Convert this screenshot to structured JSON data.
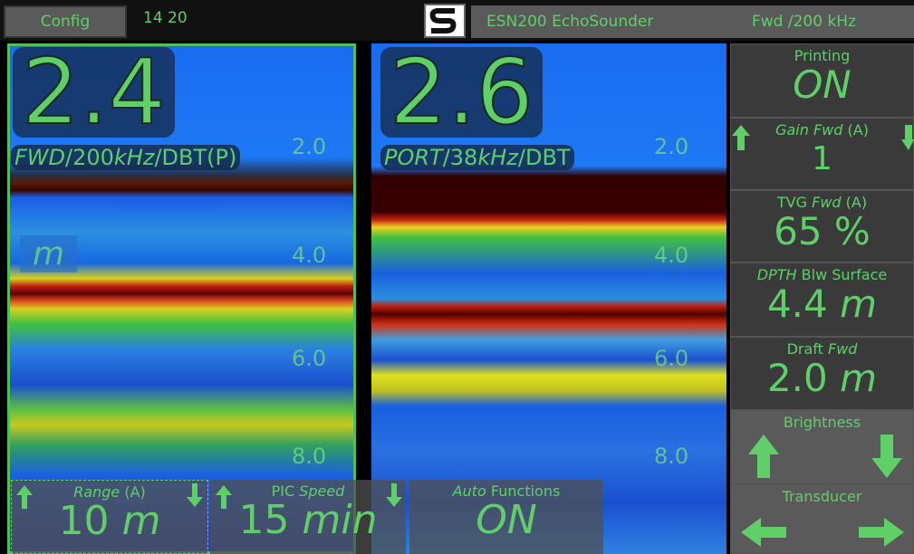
{
  "top_bar": {
    "config": "Config",
    "time": "14 20",
    "title": "ESN200 EchoSounder",
    "mode": "Fwd /200 kHz"
  },
  "left_echogram": {
    "depth": "2.4",
    "label": [
      "FWD",
      "/200",
      "kHz",
      "/DBT(P)"
    ],
    "unit": "m",
    "scale": [
      "2.0",
      "4.0",
      "6.0",
      "8.0"
    ]
  },
  "right_echogram": {
    "depth": "2.6",
    "label": [
      "PORT",
      "/38",
      "kHz",
      "/DBT"
    ],
    "scale": [
      "2.0",
      "4.0",
      "6.0",
      "8.0"
    ]
  },
  "side_panel": {
    "printing": {
      "title": "Printing",
      "value": "ON"
    },
    "gain": {
      "title": [
        "Gain",
        "Fwd",
        "(A)"
      ],
      "value": "1"
    },
    "tvg": {
      "title": [
        "TVG",
        "Fwd",
        "(A)"
      ],
      "value": "65 %"
    },
    "depth": {
      "title": [
        "DPTH",
        "Blw Surface"
      ],
      "value": "4.4",
      "unit": "m"
    },
    "draft": {
      "title": [
        "Draft",
        "Fwd"
      ],
      "value": "2.0",
      "unit": "m"
    },
    "brightness": {
      "title": "Brightness"
    },
    "transducer": {
      "title": "Transducer"
    }
  },
  "bottom_panel": {
    "range": {
      "title": [
        "Range",
        "(A)"
      ],
      "value": "10",
      "unit": "m"
    },
    "speed": {
      "title": [
        "PIC",
        "Speed"
      ],
      "value": "15",
      "unit": "min"
    },
    "auto": {
      "title": [
        "Auto",
        "Functions"
      ],
      "value": "ON"
    }
  }
}
